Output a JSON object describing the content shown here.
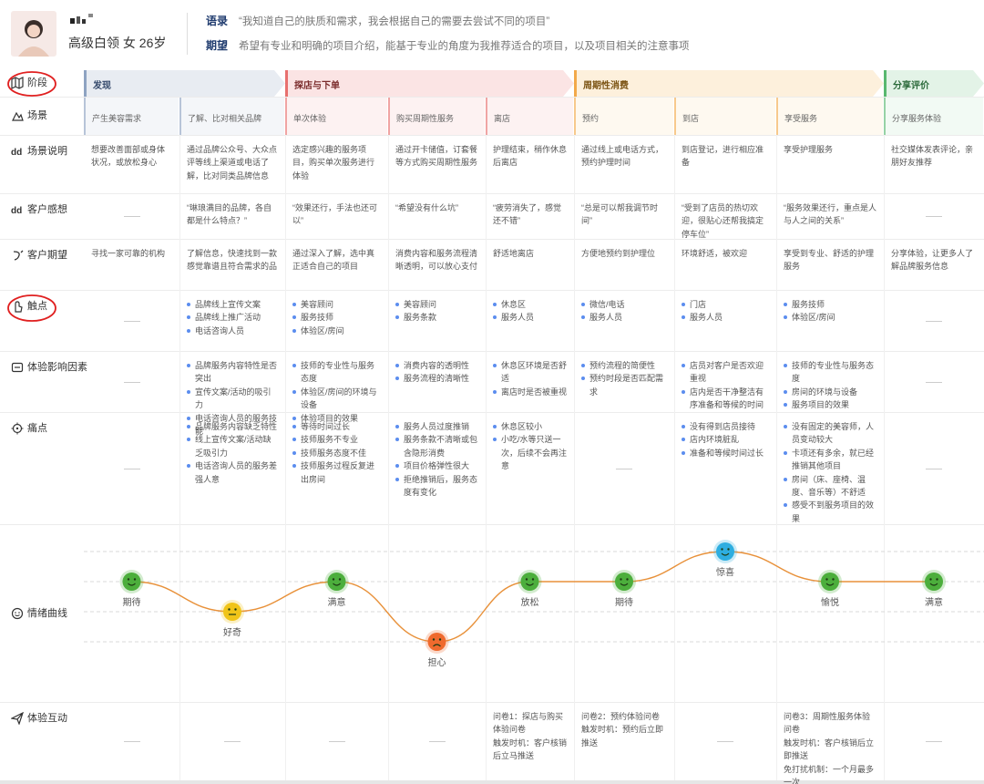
{
  "profile": {
    "description": "高级白领 女 26岁",
    "quote_label": "语录",
    "quote": "“我知道自己的肤质和需求，我会根据自己的需要去尝试不同的项目”",
    "expect_label": "期望",
    "expect": "希望有专业和明确的项目介绍，能基于专业的角度为我推荐适合的项目，以及项目相关的注意事项"
  },
  "stages": [
    {
      "name": "发现",
      "scenes": [
        "产生美容需求",
        "了解、比对相关品牌"
      ]
    },
    {
      "name": "探店与下单",
      "scenes": [
        "单次体验",
        "购买周期性服务",
        "离店"
      ]
    },
    {
      "name": "周期性消费",
      "scenes": [
        "预约",
        "到店",
        "享受服务"
      ]
    },
    {
      "name": "分享评价",
      "scenes": [
        "分享服务体验"
      ]
    }
  ],
  "rows": [
    {
      "label": "阶段"
    },
    {
      "label": "场景"
    },
    {
      "label": "场景说明",
      "cells": [
        "想要改善面部或身体状况，或放松身心",
        "通过品牌公众号、大众点评等线上渠道或电话了解，比对同类品牌信息",
        "选定感兴趣的服务项目，购买单次服务进行体验",
        "通过开卡储值，订套餐等方式购买周期性服务",
        "护理结束，稍作休息后离店",
        "通过线上或电话方式，预约护理时间",
        "到店登记，进行相应准备",
        "享受护理服务",
        "社交媒体发表评论，亲朋好友推荐"
      ]
    },
    {
      "label": "客户感想",
      "cells": [
        null,
        "“琳琅满目的品牌，各自都是什么特点？”",
        "“效果还行，手法也还可以”",
        "“希望没有什么坑”",
        "“疲劳消失了，感觉还不错”",
        "“总是可以帮我调节时间”",
        "“受到了店员的热切欢迎，很贴心还帮我搞定停车位”",
        "“服务效果还行，重点是人与人之间的关系”",
        null
      ]
    },
    {
      "label": "客户期望",
      "cells": [
        "寻找一家可靠的机构",
        "了解信息，快速找到一款感觉靠谱且符合需求的品",
        "通过深入了解，选中真正适合自己的项目",
        "消费内容和服务流程清晰透明，可以放心支付",
        "舒适地离店",
        "方便地预约到护理位",
        "环境舒适，被欢迎",
        "享受到专业、舒适的护理服务",
        "分享体验，让更多人了解品牌服务信息"
      ]
    },
    {
      "label": "触点",
      "cells": [
        null,
        [
          "品牌线上宣传文案",
          "品牌线上推广活动",
          "电话咨询人员"
        ],
        [
          "美容顾问",
          "服务技师",
          "体验区/房间"
        ],
        [
          "美容顾问",
          "服务条款"
        ],
        [
          "休息区",
          "服务人员"
        ],
        [
          "微信/电话",
          "服务人员"
        ],
        [
          "门店",
          "服务人员"
        ],
        [
          "服务技师",
          "体验区/房间"
        ],
        null
      ]
    },
    {
      "label": "体验影响因素",
      "cells": [
        null,
        [
          "品牌服务内容特性是否突出",
          "宣传文案/活动的吸引力",
          "电话咨询人员的服务技能"
        ],
        [
          "技师的专业性与服务态度",
          "体验区/房间的环境与设备",
          "体验项目的效果"
        ],
        [
          "消费内容的透明性",
          "服务流程的清晰性"
        ],
        [
          "休息区环境是否舒适",
          "离店时是否被重视"
        ],
        [
          "预约流程的简便性",
          "预约时段是否匹配需求"
        ],
        [
          "店员对客户是否欢迎重视",
          "店内是否干净整洁有序准备和等候的时间"
        ],
        [
          "技师的专业性与服务态度",
          "房间的环境与设备",
          "服务项目的效果"
        ],
        null
      ]
    },
    {
      "label": "痛点",
      "cells": [
        null,
        [
          "品牌服务内容缺乏特性",
          "线上宣传文案/活动缺乏吸引力",
          "电话咨询人员的服务差强人意"
        ],
        [
          "等待时间过长",
          "技师服务不专业",
          "技师服务态度不佳",
          "技师服务过程反复进出房间"
        ],
        [
          "服务人员过度推销",
          "服务条款不清晰或包含隐形消费",
          "项目价格弹性很大",
          "拒绝推销后，服务态度有变化"
        ],
        [
          "休息区较小",
          "小吃/水等只送一次，后续不会再注意"
        ],
        null,
        [
          "没有得到店员接待",
          "店内环境脏乱",
          "准备和等候时间过长"
        ],
        [
          "没有固定的美容师，人员变动较大",
          "卡项还有多余，就已经推销其他项目",
          "房间（床、座椅、温度、音乐等）不舒适",
          "感受不到服务项目的效果"
        ],
        null
      ]
    },
    {
      "label": "情绪曲线",
      "points": [
        {
          "label": "期待",
          "value": 1
        },
        {
          "label": "好奇",
          "value": 0
        },
        {
          "label": "满意",
          "value": 1
        },
        {
          "label": "担心",
          "value": -1
        },
        {
          "label": "放松",
          "value": 1
        },
        {
          "label": "期待",
          "value": 1
        },
        {
          "label": "惊喜",
          "value": 2
        },
        {
          "label": "愉悦",
          "value": 1
        },
        {
          "label": "满意",
          "value": 1
        }
      ]
    },
    {
      "label": "体验互动",
      "cells": [
        null,
        null,
        null,
        null,
        [
          "问卷1：探店与购买体验问卷",
          "触发时机：客户核销后立马推送"
        ],
        [
          "问卷2：预约体验问卷",
          "触发时机：预约后立即推送"
        ],
        null,
        [
          "问卷3：周期性服务体验问卷",
          "触发时机：客户核销后立即推送",
          "免打扰机制：一个月最多一次"
        ],
        null
      ]
    }
  ]
}
